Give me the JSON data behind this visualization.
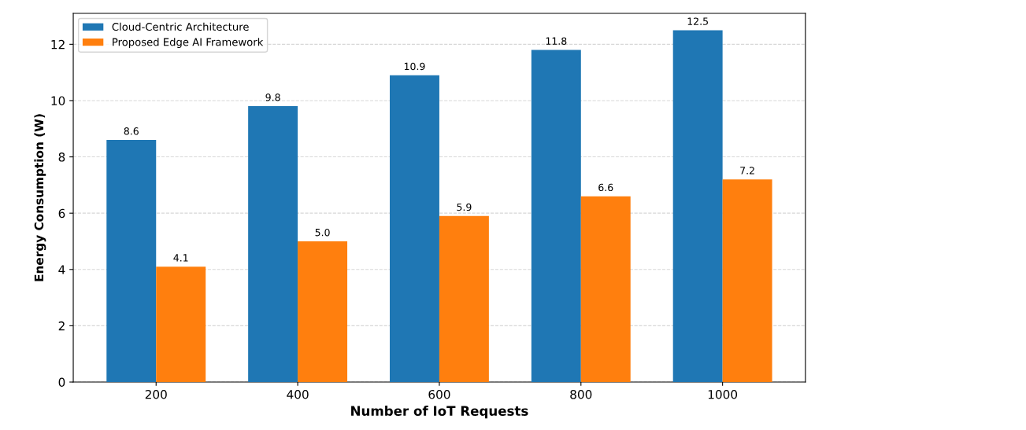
{
  "chart_data": {
    "type": "bar",
    "xlabel": "Number of IoT Requests",
    "ylabel": "Energy Consumption (W)",
    "categories": [
      "200",
      "400",
      "600",
      "800",
      "1000"
    ],
    "series": [
      {
        "name": "Cloud-Centric Architecture",
        "color": "#1f77b4",
        "values": [
          8.6,
          9.8,
          10.9,
          11.8,
          12.5
        ],
        "value_labels": [
          "8.6",
          "9.8",
          "10.9",
          "11.8",
          "12.5"
        ]
      },
      {
        "name": "Proposed Edge AI Framework",
        "color": "#ff7f0e",
        "values": [
          4.1,
          5.0,
          5.9,
          6.6,
          7.2
        ],
        "value_labels": [
          "4.1",
          "5.0",
          "5.9",
          "6.6",
          "7.2"
        ]
      }
    ],
    "ylim": [
      0,
      13.1
    ],
    "yticks": [
      0,
      2,
      4,
      6,
      8,
      10,
      12
    ],
    "grid": "y",
    "legend": "top left"
  }
}
